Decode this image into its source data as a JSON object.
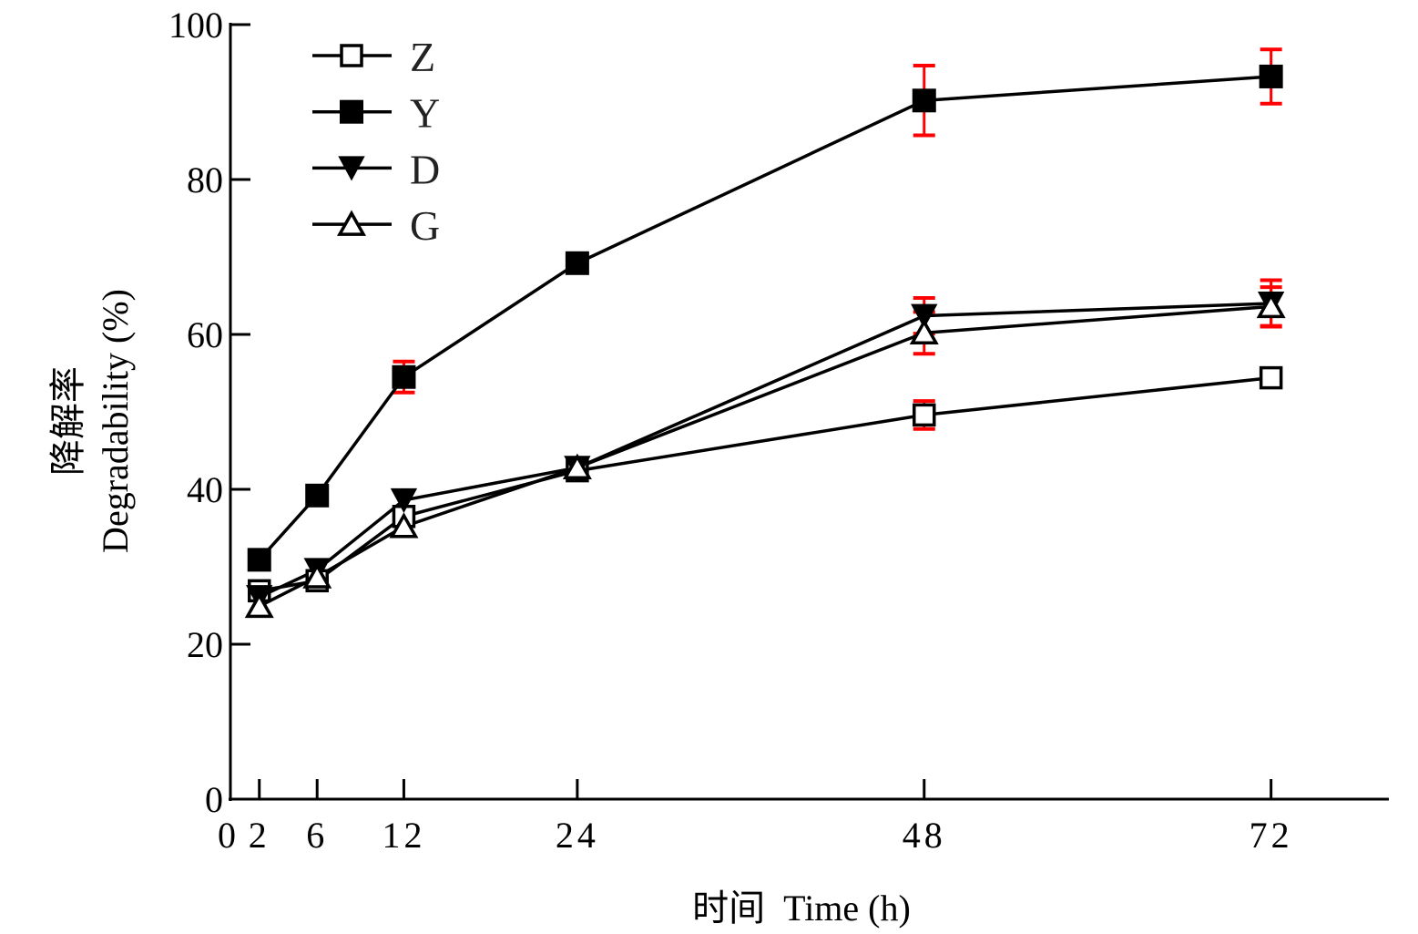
{
  "chart_data": {
    "type": "line",
    "title": "",
    "xlabel": "时间  Time (h)",
    "ylabel_cn": "降解率",
    "ylabel": "Degradability (%)",
    "xlim": [
      0,
      80
    ],
    "ylim": [
      0,
      100
    ],
    "x": [
      2,
      6,
      12,
      24,
      48,
      72
    ],
    "x_tick_labels": [
      "0",
      "2",
      "6",
      "12",
      "24",
      "48",
      "72"
    ],
    "x_tick_values": [
      0,
      2,
      6,
      12,
      24,
      48,
      72
    ],
    "y_ticks": [
      0,
      20,
      40,
      60,
      80,
      100
    ],
    "y_tick_labels": [
      "0",
      "20",
      "40",
      "60",
      "80",
      "100"
    ],
    "grid": false,
    "legend_position": "top-left",
    "error_bar_color": "#ff0000",
    "series": [
      {
        "name": "Z",
        "marker": "open-square",
        "values": [
          26.9,
          28.2,
          36.5,
          42.4,
          49.6,
          54.4
        ],
        "errors": [
          0,
          0,
          0,
          0,
          1.8,
          0
        ]
      },
      {
        "name": "Y",
        "marker": "filled-square",
        "values": [
          30.9,
          39.2,
          54.5,
          69.2,
          90.2,
          93.3
        ],
        "errors": [
          0,
          0,
          2.0,
          0,
          4.5,
          3.5
        ]
      },
      {
        "name": "D",
        "marker": "filled-down-triangle",
        "values": [
          26.1,
          29.6,
          38.6,
          42.8,
          62.4,
          64.0
        ],
        "errors": [
          0,
          0,
          0,
          0,
          2.3,
          3.0
        ]
      },
      {
        "name": "G",
        "marker": "open-up-triangle",
        "values": [
          24.9,
          28.7,
          35.2,
          42.8,
          60.2,
          63.6
        ],
        "errors": [
          0,
          0,
          0,
          0,
          2.7,
          2.5
        ]
      }
    ]
  }
}
